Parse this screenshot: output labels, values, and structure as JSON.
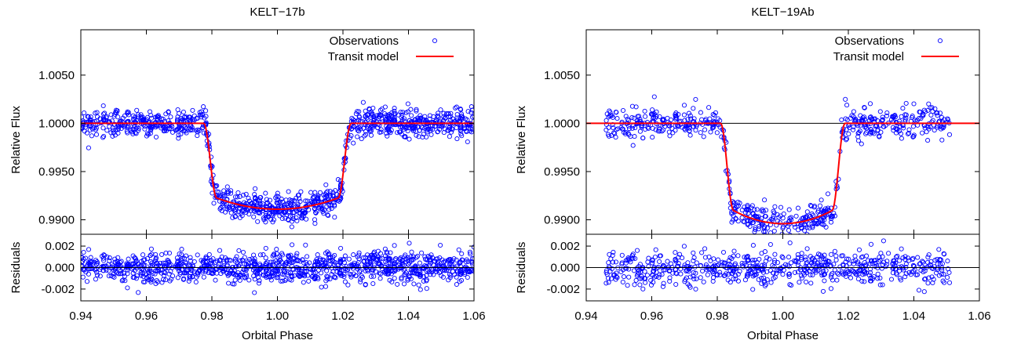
{
  "colors": {
    "observations": "#0000ff",
    "model": "#ff0000",
    "axis": "#000000",
    "reference": "#000000"
  },
  "chart_data": [
    {
      "type": "scatter",
      "title": "KELT−17b",
      "xlabel": "Orbital Phase",
      "ylabel_top": "Relative Flux",
      "ylabel_bottom": "Residuals",
      "xlim": [
        0.94,
        1.06
      ],
      "ylim_top": [
        0.9885,
        1.0097
      ],
      "ylim_bottom": [
        -0.0031,
        0.0031
      ],
      "x_ticks": [
        "0.94",
        "0.96",
        "0.98",
        "1.00",
        "1.02",
        "1.04",
        "1.06"
      ],
      "y_ticks_top": [
        "1.0050",
        "1.0000",
        "0.9950",
        "0.9900"
      ],
      "y_ticks_bottom": [
        "0.002",
        "0.000",
        "-0.002"
      ],
      "reference_level": 1.0,
      "legend_position": "top-right",
      "series": [
        {
          "name": "Observations",
          "kind": "points",
          "x_range": [
            0.94,
            1.06
          ],
          "scatter_sigma": 0.0007,
          "point_count": 1100
        },
        {
          "name": "Transit model",
          "kind": "line",
          "contact_points": [
            0.9775,
            0.9815,
            1.0185,
            1.0225
          ],
          "depth": 0.0089,
          "x_range": [
            0.94,
            1.06
          ]
        }
      ]
    },
    {
      "type": "scatter",
      "title": "KELT−19Ab",
      "xlabel": "Orbital Phase",
      "ylabel_top": "Relative Flux",
      "ylabel_bottom": "Residuals",
      "xlim": [
        0.94,
        1.06
      ],
      "ylim_top": [
        0.9885,
        1.0097
      ],
      "ylim_bottom": [
        -0.0031,
        0.0031
      ],
      "x_ticks": [
        "0.94",
        "0.96",
        "0.98",
        "1.00",
        "1.02",
        "1.04",
        "1.06"
      ],
      "y_ticks_top": [
        "1.0050",
        "1.0000",
        "0.9950",
        "0.9900"
      ],
      "y_ticks_bottom": [
        "0.002",
        "0.000",
        "-0.002"
      ],
      "reference_level": 1.0,
      "legend_position": "top-right",
      "series": [
        {
          "name": "Observations",
          "kind": "points",
          "x_range": [
            0.946,
            1.051
          ],
          "scatter_sigma": 0.0008,
          "point_count": 650
        },
        {
          "name": "Transit model",
          "kind": "line",
          "contact_points": [
            0.981,
            0.985,
            1.015,
            1.019
          ],
          "depth": 0.0104,
          "x_range": [
            0.94,
            1.06
          ]
        }
      ]
    }
  ]
}
